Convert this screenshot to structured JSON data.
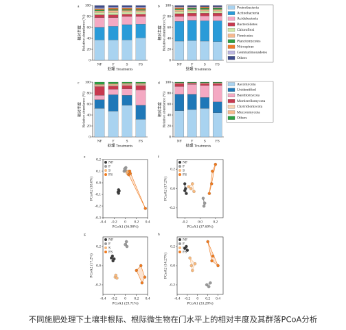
{
  "caption": "不同施肥处理下土壤非根际、根际微生物在门水平上的相对丰度及其群落PCoA分析",
  "chart_data": [
    {
      "type": "bar",
      "panel": "a",
      "ylabel_cn": "相对丰度",
      "ylabel": "Relative abundance (%)",
      "xlabel": "处理 Treatments",
      "categories": [
        "NF",
        "F",
        "S",
        "FS"
      ],
      "ylim": [
        0,
        100
      ],
      "yticks": [
        0,
        20,
        40,
        60,
        80,
        100
      ],
      "series": [
        {
          "color": "#a9d3f0",
          "values": [
            37,
            37,
            37,
            41
          ]
        },
        {
          "color": "#2a9bd8",
          "values": [
            23,
            25,
            28,
            25
          ]
        },
        {
          "color": "#f4a9c3",
          "values": [
            18,
            16,
            15,
            14
          ]
        },
        {
          "color": "#c7394f",
          "values": [
            5,
            5,
            4,
            4
          ]
        },
        {
          "color": "#cfe8a8",
          "values": [
            4,
            4,
            4,
            4
          ]
        },
        {
          "color": "#f6b98e",
          "values": [
            3,
            4,
            3,
            3
          ]
        },
        {
          "color": "#2ea043",
          "values": [
            2,
            2,
            2,
            2
          ]
        },
        {
          "color": "#f07b2c",
          "values": [
            2,
            2,
            2,
            2
          ]
        },
        {
          "color": "#bcb6e0",
          "values": [
            2,
            2,
            2,
            2
          ]
        },
        {
          "color": "#3c4a8c",
          "values": [
            4,
            3,
            3,
            3
          ]
        }
      ]
    },
    {
      "type": "bar",
      "panel": "b",
      "ylabel_cn": "相对丰度",
      "ylabel": "Relative abundance (%)",
      "xlabel": "处理 Treatments",
      "categories": [
        "NF",
        "F",
        "S",
        "FS"
      ],
      "ylim": [
        0,
        100
      ],
      "yticks": [
        0,
        20,
        40,
        60,
        80,
        100
      ],
      "legend": true,
      "series": [
        {
          "name": "Proteobacteria",
          "color": "#a9d3f0",
          "values": [
            35,
            36,
            35,
            34
          ]
        },
        {
          "name": "Actinobacteria",
          "color": "#2a9bd8",
          "values": [
            36,
            37,
            37,
            38
          ]
        },
        {
          "name": "Acidobacteria",
          "color": "#f4a9c3",
          "values": [
            9,
            8,
            9,
            9
          ]
        },
        {
          "name": "Bacteroidetes",
          "color": "#c7394f",
          "values": [
            5,
            5,
            5,
            5
          ]
        },
        {
          "name": "Chloroflexi",
          "color": "#cfe8a8",
          "values": [
            4,
            4,
            4,
            4
          ]
        },
        {
          "name": "Firmicutes",
          "color": "#f6b98e",
          "values": [
            3,
            3,
            3,
            3
          ]
        },
        {
          "name": "Planctomycetes",
          "color": "#2ea043",
          "values": [
            2,
            2,
            2,
            2
          ]
        },
        {
          "name": "Nitrospirae",
          "color": "#f07b2c",
          "values": [
            2,
            1,
            2,
            1
          ]
        },
        {
          "name": "Gemmatimonadetes",
          "color": "#bcb6e0",
          "values": [
            2,
            2,
            1,
            2
          ]
        },
        {
          "name": "Others",
          "color": "#3c4a8c",
          "values": [
            2,
            2,
            2,
            2
          ]
        }
      ]
    },
    {
      "type": "bar",
      "panel": "c",
      "ylabel_cn": "相对丰度",
      "ylabel": "Relative abundance (%)",
      "xlabel": "处理 Treatments",
      "categories": [
        "NF",
        "F",
        "S",
        "FS"
      ],
      "ylim": [
        0,
        100
      ],
      "yticks": [
        0,
        20,
        40,
        60,
        80,
        100
      ],
      "series": [
        {
          "color": "#a9d3f0",
          "values": [
            52,
            47,
            58,
            32
          ]
        },
        {
          "color": "#1f78b8",
          "values": [
            16,
            30,
            18,
            26
          ]
        },
        {
          "color": "#f4a9c3",
          "values": [
            8,
            10,
            12,
            28
          ]
        },
        {
          "color": "#c7394f",
          "values": [
            16,
            6,
            6,
            8
          ]
        },
        {
          "color": "#f8d3b4",
          "values": [
            2,
            2,
            2,
            2
          ]
        },
        {
          "color": "#f6b98e",
          "values": [
            2,
            2,
            2,
            2
          ]
        },
        {
          "color": "#2ea043",
          "values": [
            4,
            3,
            2,
            2
          ]
        }
      ]
    },
    {
      "type": "bar",
      "panel": "d",
      "ylabel_cn": "相对丰度",
      "ylabel": "Relative abundance (%)",
      "xlabel": "处理 Treatments",
      "categories": [
        "NF",
        "F",
        "S",
        "FS"
      ],
      "ylim": [
        0,
        100
      ],
      "yticks": [
        0,
        20,
        40,
        60,
        80,
        100
      ],
      "legend": true,
      "series": [
        {
          "name": "Ascomycota",
          "color": "#a9d3f0",
          "values": [
            48,
            50,
            52,
            44
          ]
        },
        {
          "name": "Unidentified",
          "color": "#1f78b8",
          "values": [
            30,
            28,
            20,
            20
          ]
        },
        {
          "name": "Basidiomycota",
          "color": "#f4a9c3",
          "values": [
            14,
            18,
            22,
            30
          ]
        },
        {
          "name": "Mortierellomycota",
          "color": "#c7394f",
          "values": [
            5,
            2,
            3,
            3
          ]
        },
        {
          "name": "Chytridiomycota",
          "color": "#f8d3b4",
          "values": [
            1,
            1,
            1,
            1
          ]
        },
        {
          "name": "Mucoromycota",
          "color": "#f6b98e",
          "values": [
            1,
            0,
            1,
            1
          ]
        },
        {
          "name": "Others",
          "color": "#2ea043",
          "values": [
            1,
            1,
            1,
            1
          ]
        }
      ]
    },
    {
      "type": "scatter",
      "panel": "e",
      "xlabel": "PCoA1 (36.98%)",
      "ylabel": "PCoA2 (18.8%)",
      "xlim": [
        -0.4,
        0.4
      ],
      "xticks": [
        -0.4,
        -0.2,
        0,
        0.2,
        0.4
      ],
      "ylim": [
        -0.3,
        0.2
      ],
      "yticks": [
        -0.3,
        -0.2,
        -0.1,
        {
          "value": 0,
          "label": "0.0"
        },
        0.1,
        0.2
      ],
      "series": [
        {
          "name": "NF",
          "color": "#3a3a3a",
          "x": [
            -0.13,
            -0.12,
            -0.11,
            -0.12
          ],
          "y": [
            -0.08,
            -0.06,
            -0.07,
            -0.09
          ]
        },
        {
          "name": "F",
          "color": "#9a9a9a",
          "x": [
            -0.02,
            0.01,
            0.0,
            -0.01
          ],
          "y": [
            0.1,
            0.13,
            0.11,
            0.12
          ]
        },
        {
          "name": "S",
          "color": "#f9b97c",
          "x": [
            0.03,
            0.05,
            0.04
          ],
          "y": [
            0.09,
            0.1,
            0.08
          ]
        },
        {
          "name": "FS",
          "color": "#f07a1e",
          "x": [
            0.36,
            0.08,
            0.06,
            0.09
          ],
          "y": [
            -0.22,
            0.1,
            0.07,
            0.08
          ]
        }
      ]
    },
    {
      "type": "scatter",
      "panel": "f",
      "xlabel": "PCoA1 (37.69%)",
      "ylabel": "PCoA2 (17.2%)",
      "xlim": [
        -0.3,
        0.3
      ],
      "xticks": [
        -0.2,
        {
          "value": 0,
          "label": "0.0"
        },
        0.2
      ],
      "ylim": [
        -0.3,
        0.3
      ],
      "yticks": [
        -0.2,
        {
          "value": 0,
          "label": "0.0"
        },
        0.2
      ],
      "series": [
        {
          "name": "NF",
          "color": "#3a3a3a",
          "x": [
            -0.2,
            -0.19,
            -0.18,
            -0.2
          ],
          "y": [
            -0.02,
            0.0,
            -0.05,
            0.05
          ]
        },
        {
          "name": "F",
          "color": "#9a9a9a",
          "x": [
            0.05,
            0.06,
            0.04
          ],
          "y": [
            -0.18,
            -0.15,
            -0.1
          ]
        },
        {
          "name": "S",
          "color": "#f9b97c",
          "x": [
            -0.15,
            -0.1,
            -0.08,
            -0.12
          ],
          "y": [
            0.02,
            0.05,
            -0.03,
            0.0
          ]
        },
        {
          "name": "FS",
          "color": "#f07a1e",
          "x": [
            0.16,
            0.2,
            0.12,
            0.15
          ],
          "y": [
            0.18,
            0.25,
            -0.05,
            0.05
          ]
        }
      ]
    },
    {
      "type": "scatter",
      "panel": "g",
      "xlabel": "PCoA1 (29.71%)",
      "ylabel": "PCoA2 (17.2%)",
      "xlim": [
        -0.4,
        0.4
      ],
      "xticks": [
        -0.4,
        -0.2,
        0,
        0.2,
        0.4
      ],
      "ylim": [
        -0.3,
        0.3
      ],
      "yticks": [
        -0.2,
        {
          "value": 0,
          "label": "0.0"
        },
        0.2
      ],
      "series": [
        {
          "name": "NF",
          "color": "#3a3a3a",
          "x": [
            -0.25,
            -0.22,
            -0.2,
            -0.23
          ],
          "y": [
            0.08,
            0.05,
            0.07,
            0.1
          ]
        },
        {
          "name": "F",
          "color": "#9a9a9a",
          "x": [
            0.0,
            0.02,
            0.03
          ],
          "y": [
            0.22,
            0.25,
            0.2
          ]
        },
        {
          "name": "S",
          "color": "#f9b97c",
          "x": [
            -0.18,
            -0.15,
            -0.17
          ],
          "y": [
            -0.12,
            -0.13,
            -0.1
          ]
        },
        {
          "name": "FS",
          "color": "#f07a1e",
          "x": [
            0.2,
            0.3,
            0.35,
            0.28
          ],
          "y": [
            -0.05,
            -0.18,
            -0.12,
            0.0
          ]
        }
      ]
    },
    {
      "type": "scatter",
      "panel": "h",
      "xlabel": "PCoA1 (33.28%)",
      "ylabel": "PCoA2 (14.27%)",
      "xlim": [
        -0.4,
        0.5
      ],
      "xticks": [
        -0.4,
        -0.2,
        0,
        0.2,
        0.4
      ],
      "ylim": [
        -0.3,
        0.3
      ],
      "yticks": [
        -0.2,
        {
          "value": 0,
          "label": "0.0"
        },
        0.2
      ],
      "series": [
        {
          "name": "NF",
          "color": "#3a3a3a",
          "x": [
            -0.25,
            -0.22,
            -0.2
          ],
          "y": [
            0.18,
            0.2,
            0.16
          ]
        },
        {
          "name": "F",
          "color": "#9a9a9a",
          "x": [
            0.18,
            0.22,
            0.25
          ],
          "y": [
            -0.2,
            -0.22,
            -0.18
          ]
        },
        {
          "name": "S",
          "color": "#f9b97c",
          "x": [
            -0.15,
            -0.05,
            -0.1,
            -0.12
          ],
          "y": [
            0.08,
            0.02,
            -0.05,
            0.0
          ]
        },
        {
          "name": "FS",
          "color": "#f07a1e",
          "x": [
            0.2,
            0.28,
            0.4,
            0.3
          ],
          "y": [
            0.25,
            0.05,
            0.0,
            0.1
          ]
        }
      ]
    }
  ]
}
